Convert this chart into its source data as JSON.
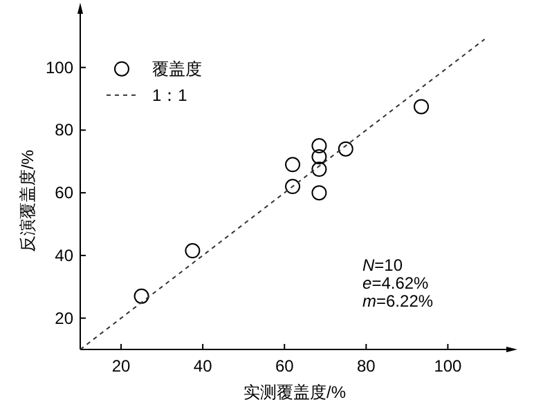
{
  "chart_data": {
    "type": "scatter",
    "xlabel": "实测覆盖度/%",
    "ylabel": "反演覆盖度/%",
    "xlim": [
      10,
      115
    ],
    "ylim": [
      10,
      118
    ],
    "xticks": [
      20,
      40,
      60,
      80,
      100
    ],
    "yticks": [
      20,
      40,
      60,
      80,
      100
    ],
    "grid": false,
    "legend": "top left",
    "series": [
      {
        "name": "覆盖度",
        "marker": "circle",
        "color": "#000000",
        "x": [
          25,
          37.5,
          62,
          62,
          68.5,
          68.5,
          68.5,
          68.5,
          75,
          93.5
        ],
        "values": [
          27,
          41.5,
          62,
          69,
          75,
          71.5,
          67.5,
          60,
          74,
          87.5
        ]
      },
      {
        "name": "1：1",
        "type": "line",
        "line_style": "dashed",
        "color": "#333333",
        "x": [
          10,
          109
        ],
        "values": [
          10,
          109
        ]
      }
    ],
    "annotations": [
      "N=10",
      "e=4.62%",
      "m=6.22%"
    ]
  }
}
